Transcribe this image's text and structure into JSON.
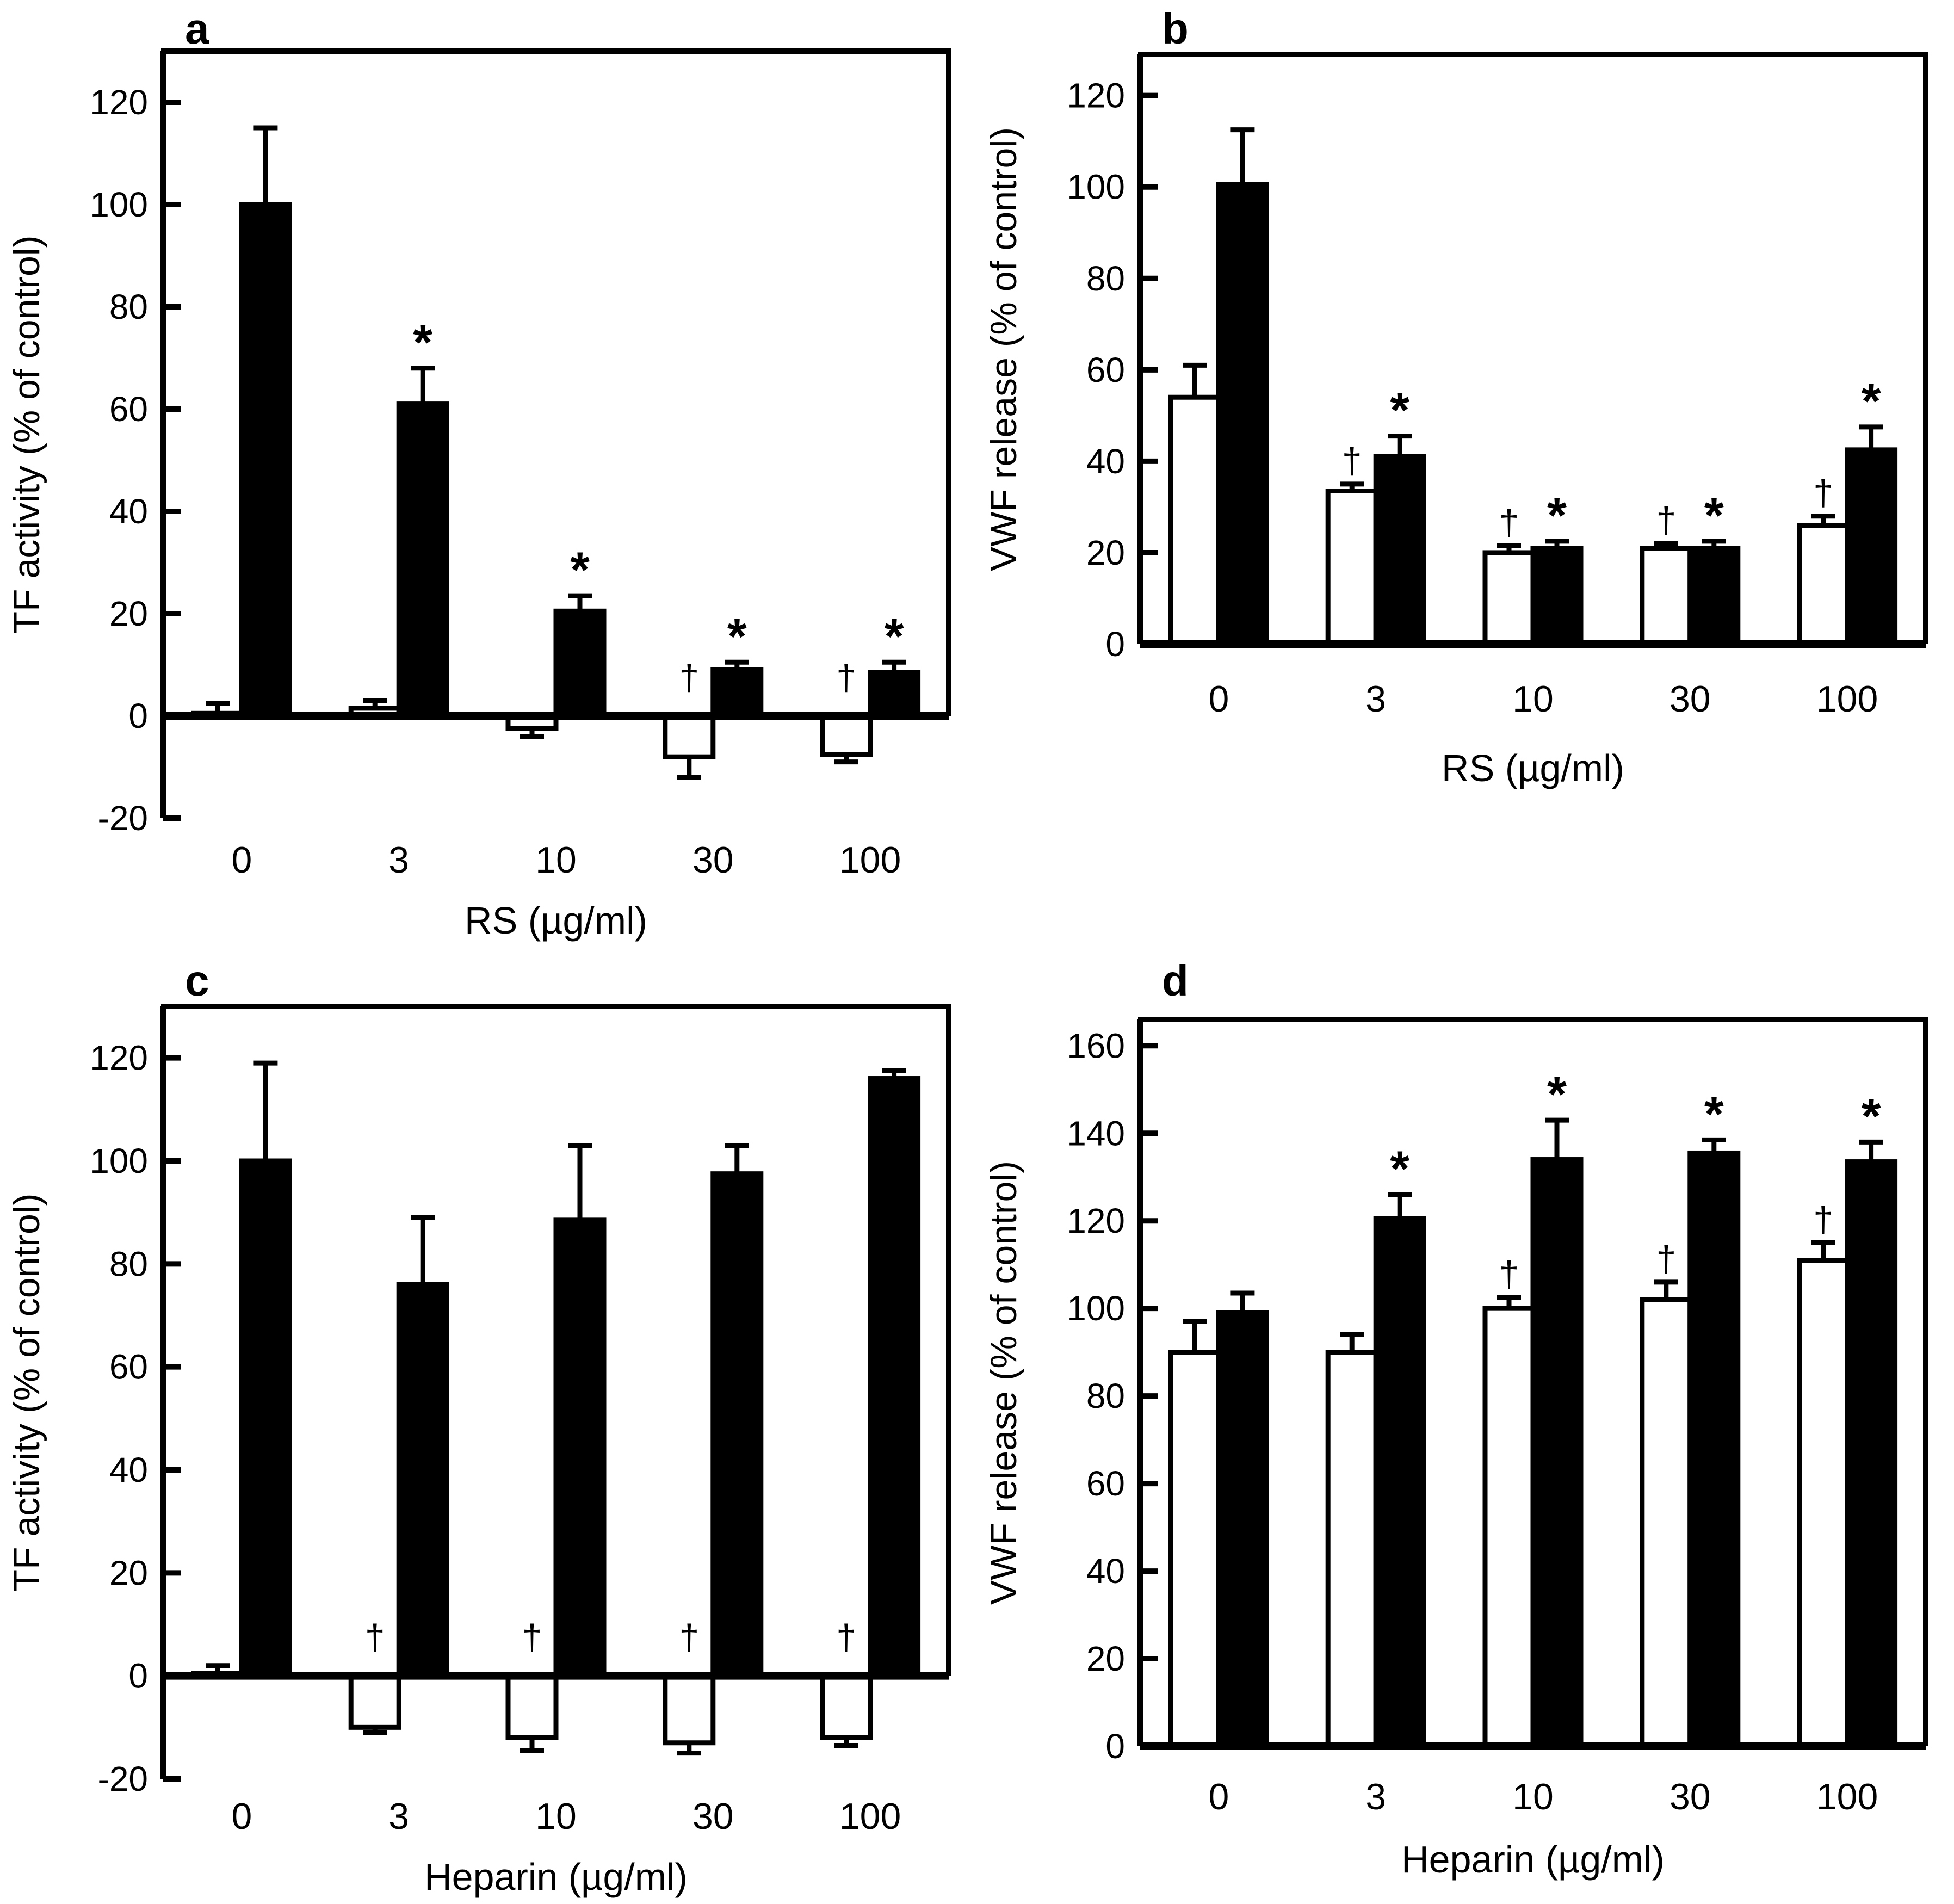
{
  "figure": {
    "background": "#ffffff",
    "bar_outline_color": "#000000",
    "open_bar_fill": "#ffffff",
    "filled_bar_fill": "#000000",
    "open_bar_sig_symbol": "†",
    "filled_bar_sig_symbol": "*"
  },
  "chart_data": [
    {
      "panel_label": "a",
      "type": "bar",
      "title": "",
      "xlabel": "RS (µg/ml)",
      "ylabel": "TF activity (% of control)",
      "categories": [
        "0",
        "3",
        "10",
        "30",
        "100"
      ],
      "ylim": [
        -20,
        130
      ],
      "yticks": [
        -20,
        0,
        20,
        40,
        60,
        80,
        100,
        120
      ],
      "grid": false,
      "legend": "none",
      "series": [
        {
          "name": "open bars",
          "fill": "#ffffff",
          "values": [
            0.5,
            1.5,
            -2.5,
            -8,
            -7.5
          ],
          "errors": [
            2,
            1.5,
            1.5,
            4,
            1.5
          ],
          "sig": [
            "",
            "",
            "",
            "†",
            "†"
          ]
        },
        {
          "name": "filled bars",
          "fill": "#000000",
          "values": [
            100,
            61,
            20.5,
            9,
            8.5
          ],
          "errors": [
            15,
            7,
            3,
            1.5,
            2
          ],
          "sig": [
            "",
            "*",
            "*",
            "*",
            "*"
          ]
        }
      ]
    },
    {
      "panel_label": "b",
      "type": "bar",
      "title": "",
      "xlabel": "RS (µg/ml)",
      "ylabel": "VWF release (% of control)",
      "categories": [
        "0",
        "3",
        "10",
        "30",
        "100"
      ],
      "ylim": [
        0,
        129
      ],
      "yticks": [
        0,
        20,
        40,
        60,
        80,
        100,
        120
      ],
      "grid": false,
      "legend": "none",
      "series": [
        {
          "name": "open bars",
          "fill": "#ffffff",
          "values": [
            54,
            33.5,
            20,
            21,
            26
          ],
          "errors": [
            7,
            1.5,
            1.5,
            1,
            2
          ],
          "sig": [
            "",
            "†",
            "†",
            "†",
            "†"
          ]
        },
        {
          "name": "filled bars",
          "fill": "#000000",
          "values": [
            100.5,
            41,
            21,
            21,
            42.5
          ],
          "errors": [
            12,
            4.5,
            1.5,
            1.5,
            5
          ],
          "sig": [
            "",
            "*",
            "*",
            "*",
            "*"
          ]
        }
      ]
    },
    {
      "panel_label": "c",
      "type": "bar",
      "title": "",
      "xlabel": "Heparin (µg/ml)",
      "ylabel": "TF activity (% of control)",
      "categories": [
        "0",
        "3",
        "10",
        "30",
        "100"
      ],
      "ylim": [
        -20,
        130
      ],
      "yticks": [
        -20,
        0,
        20,
        40,
        60,
        80,
        100,
        120
      ],
      "grid": false,
      "legend": "none",
      "series": [
        {
          "name": "open bars",
          "fill": "#ffffff",
          "values": [
            0.5,
            -10,
            -12,
            -13,
            -12
          ],
          "errors": [
            1.5,
            1,
            2.5,
            2,
            1.5
          ],
          "sig": [
            "",
            "†",
            "†",
            "†",
            "†"
          ]
        },
        {
          "name": "filled bars",
          "fill": "#000000",
          "values": [
            100,
            76,
            88.5,
            97.5,
            116
          ],
          "errors": [
            19,
            13,
            14.5,
            5.5,
            1.5
          ],
          "sig": [
            "",
            "",
            "",
            "",
            ""
          ]
        }
      ]
    },
    {
      "panel_label": "d",
      "type": "bar",
      "title": "",
      "xlabel": "Heparin (µg/ml)",
      "ylabel": "VWF release (% of control)",
      "categories": [
        "0",
        "3",
        "10",
        "30",
        "100"
      ],
      "ylim": [
        0,
        166
      ],
      "yticks": [
        0,
        20,
        40,
        60,
        80,
        100,
        120,
        140,
        160
      ],
      "grid": false,
      "legend": "none",
      "series": [
        {
          "name": "open bars",
          "fill": "#ffffff",
          "values": [
            90,
            90,
            100,
            102,
            111
          ],
          "errors": [
            7,
            4,
            2.5,
            4,
            4
          ],
          "sig": [
            "",
            "",
            "†",
            "†",
            "†"
          ]
        },
        {
          "name": "filled bars",
          "fill": "#000000",
          "values": [
            99,
            120.5,
            134,
            135.5,
            133.5
          ],
          "errors": [
            4.5,
            5.5,
            9,
            3,
            4.5
          ],
          "sig": [
            "",
            "*",
            "*",
            "*",
            "*"
          ]
        }
      ]
    }
  ]
}
